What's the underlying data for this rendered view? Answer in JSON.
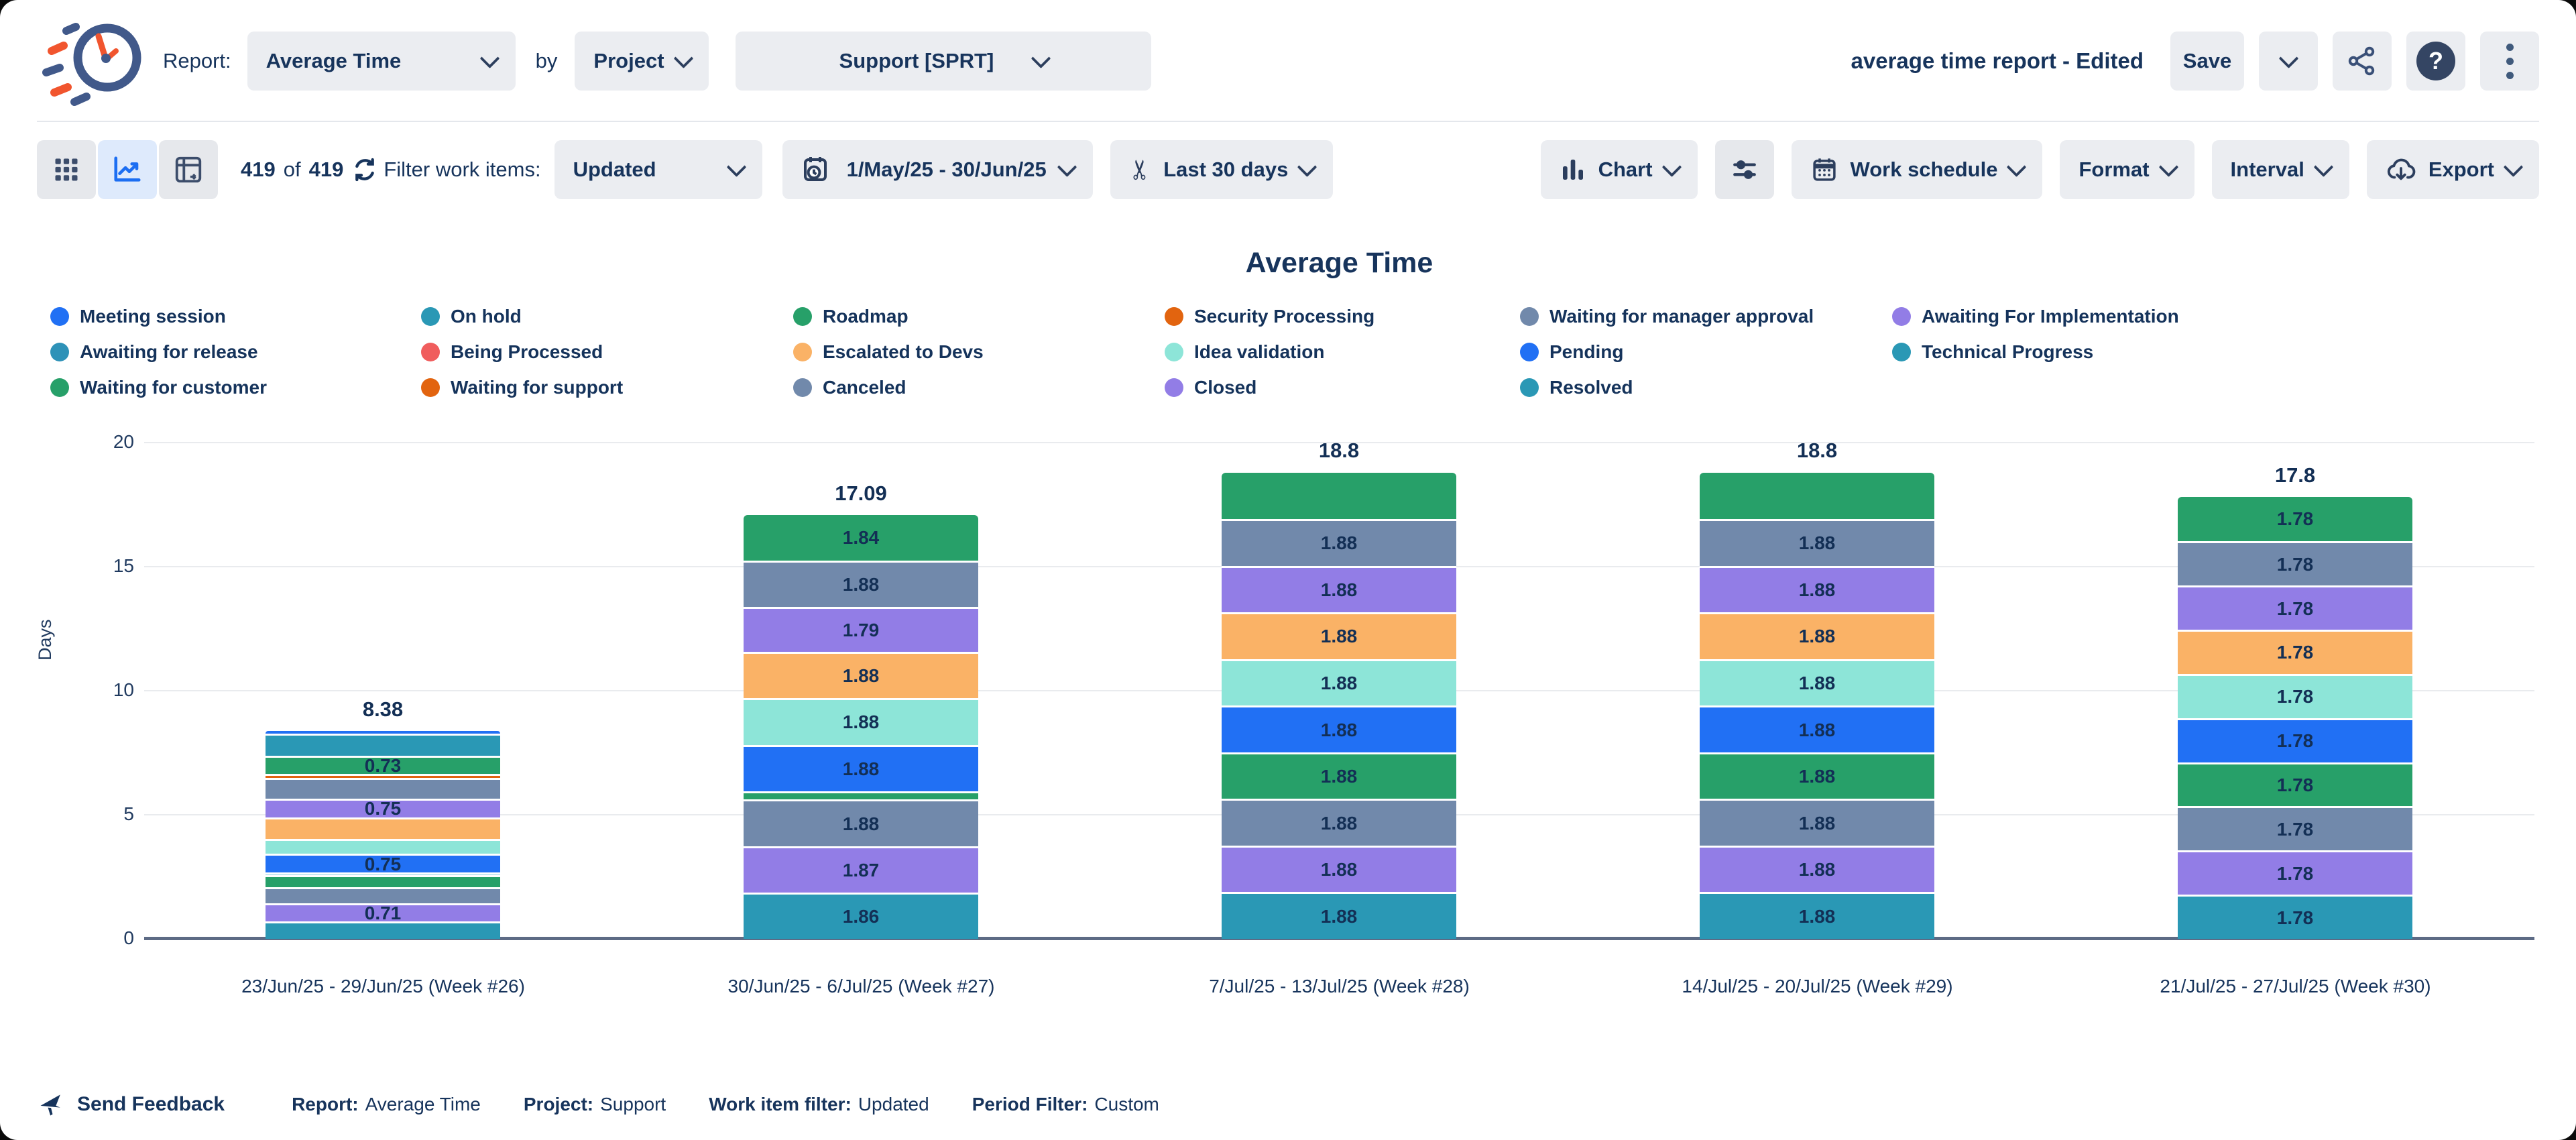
{
  "header": {
    "report_label": "Report:",
    "report_value": "Average Time",
    "by_label": "by",
    "group_value": "Project",
    "project_value": "Support [SPRT]",
    "doc_title": "average time report - Edited",
    "save_label": "Save"
  },
  "toolbar": {
    "count_current": "419",
    "count_of": "of",
    "count_total": "419",
    "filter_label": "Filter work items:",
    "filter_value": "Updated",
    "date_range": "1/May/25 - 30/Jun/25",
    "trim_value": "Last 30 days",
    "chart_label": "Chart",
    "work_schedule_label": "Work schedule",
    "format_label": "Format",
    "interval_label": "Interval",
    "export_label": "Export"
  },
  "icons": {
    "scissors_glyph": "✂"
  },
  "legend": {
    "items": [
      {
        "label": "Meeting session",
        "color": "#2170F4"
      },
      {
        "label": "On hold",
        "color": "#2A98B5"
      },
      {
        "label": "Roadmap",
        "color": "#27A069"
      },
      {
        "label": "Security Processing",
        "color": "#E2640F"
      },
      {
        "label": "Waiting for manager approval",
        "color": "#7189AB"
      },
      {
        "label": "Awaiting For Implementation",
        "color": "#927DE6"
      },
      {
        "label": "Awaiting for release",
        "color": "#2E92B8"
      },
      {
        "label": "Being Processed",
        "color": "#F05D5D"
      },
      {
        "label": "Escalated to Devs",
        "color": "#FAB266"
      },
      {
        "label": "Idea validation",
        "color": "#8DE5D8"
      },
      {
        "label": "Pending",
        "color": "#2170F4"
      },
      {
        "label": "Technical Progress",
        "color": "#2A98B5"
      },
      {
        "label": "Waiting for customer",
        "color": "#27A069"
      },
      {
        "label": "Waiting for support",
        "color": "#E2640F"
      },
      {
        "label": "Canceled",
        "color": "#7189AB"
      },
      {
        "label": "Closed",
        "color": "#927DE6"
      },
      {
        "label": "Resolved",
        "color": "#2A98B5"
      }
    ]
  },
  "chart_data": {
    "type": "bar",
    "stacked": true,
    "title": "Average Time",
    "ylabel": "Days",
    "ylim": [
      0,
      20
    ],
    "yticks": [
      0,
      5,
      10,
      15,
      20
    ],
    "grid": true,
    "legend_position": "top",
    "categories": [
      "23/Jun/25 - 29/Jun/25 (Week #26)",
      "30/Jun/25 - 6/Jul/25 (Week #27)",
      "7/Jul/25 - 13/Jul/25 (Week #28)",
      "14/Jul/25 - 20/Jul/25 (Week #29)",
      "21/Jul/25 - 27/Jul/25 (Week #30)"
    ],
    "totals": [
      "8.38",
      "17.09",
      "18.8",
      "18.8",
      "17.8"
    ],
    "bars": [
      {
        "total": "8.38",
        "segments": [
          {
            "name": "meeting-session",
            "color": "#2170F4",
            "value": 0.1,
            "label": ""
          },
          {
            "name": "on-hold",
            "color": "#2A98B5",
            "value": 0.9,
            "label": ""
          },
          {
            "name": "waiting-for-customer",
            "color": "#27A069",
            "value": 0.73,
            "label": "0.73"
          },
          {
            "name": "waiting-for-support",
            "color": "#E2640F",
            "value": 0.15,
            "label": ""
          },
          {
            "name": "waiting-for-manager-approval",
            "color": "#7189AB",
            "value": 0.85,
            "label": ""
          },
          {
            "name": "awaiting-for-implementation",
            "color": "#927DE6",
            "value": 0.75,
            "label": "0.75"
          },
          {
            "name": "escalated-to-devs",
            "color": "#FAB266",
            "value": 0.88,
            "label": ""
          },
          {
            "name": "idea-validation",
            "color": "#8DE5D8",
            "value": 0.6,
            "label": ""
          },
          {
            "name": "pending",
            "color": "#2170F4",
            "value": 0.75,
            "label": "0.75"
          },
          {
            "name": "awaiting-for-release",
            "color": "#9FD8E8",
            "value": 0.1,
            "label": ""
          },
          {
            "name": "roadmap",
            "color": "#27A069",
            "value": 0.5,
            "label": ""
          },
          {
            "name": "canceled",
            "color": "#7189AB",
            "value": 0.65,
            "label": ""
          },
          {
            "name": "closed",
            "color": "#927DE6",
            "value": 0.71,
            "label": "0.71"
          },
          {
            "name": "resolved",
            "color": "#2A98B5",
            "value": 0.71,
            "label": ""
          }
        ]
      },
      {
        "total": "17.09",
        "segments": [
          {
            "name": "waiting-for-customer",
            "color": "#27A069",
            "value": 1.84,
            "label": "1.84"
          },
          {
            "name": "waiting-for-manager-approval",
            "color": "#7189AB",
            "value": 1.88,
            "label": "1.88"
          },
          {
            "name": "awaiting-for-implementation",
            "color": "#927DE6",
            "value": 1.79,
            "label": "1.79"
          },
          {
            "name": "escalated-to-devs",
            "color": "#FAB266",
            "value": 1.88,
            "label": "1.88"
          },
          {
            "name": "idea-validation",
            "color": "#8DE5D8",
            "value": 1.88,
            "label": "1.88"
          },
          {
            "name": "pending",
            "color": "#2170F4",
            "value": 1.88,
            "label": "1.88"
          },
          {
            "name": "roadmap",
            "color": "#27A069",
            "value": 0.33,
            "label": ""
          },
          {
            "name": "canceled",
            "color": "#7189AB",
            "value": 1.88,
            "label": "1.88"
          },
          {
            "name": "closed",
            "color": "#927DE6",
            "value": 1.87,
            "label": "1.87"
          },
          {
            "name": "resolved",
            "color": "#2A98B5",
            "value": 1.86,
            "label": "1.86"
          }
        ]
      },
      {
        "total": "18.8",
        "segments": [
          {
            "name": "waiting-for-customer",
            "color": "#27A069",
            "value": 1.88,
            "label": ""
          },
          {
            "name": "waiting-for-manager-approval",
            "color": "#7189AB",
            "value": 1.88,
            "label": "1.88"
          },
          {
            "name": "awaiting-for-implementation",
            "color": "#927DE6",
            "value": 1.88,
            "label": "1.88"
          },
          {
            "name": "escalated-to-devs",
            "color": "#FAB266",
            "value": 1.88,
            "label": "1.88"
          },
          {
            "name": "idea-validation",
            "color": "#8DE5D8",
            "value": 1.88,
            "label": "1.88"
          },
          {
            "name": "pending",
            "color": "#2170F4",
            "value": 1.88,
            "label": "1.88"
          },
          {
            "name": "roadmap",
            "color": "#27A069",
            "value": 1.88,
            "label": "1.88"
          },
          {
            "name": "canceled",
            "color": "#7189AB",
            "value": 1.88,
            "label": "1.88"
          },
          {
            "name": "closed",
            "color": "#927DE6",
            "value": 1.88,
            "label": "1.88"
          },
          {
            "name": "resolved",
            "color": "#2A98B5",
            "value": 1.88,
            "label": "1.88"
          }
        ]
      },
      {
        "total": "18.8",
        "segments": [
          {
            "name": "waiting-for-customer",
            "color": "#27A069",
            "value": 1.88,
            "label": ""
          },
          {
            "name": "waiting-for-manager-approval",
            "color": "#7189AB",
            "value": 1.88,
            "label": "1.88"
          },
          {
            "name": "awaiting-for-implementation",
            "color": "#927DE6",
            "value": 1.88,
            "label": "1.88"
          },
          {
            "name": "escalated-to-devs",
            "color": "#FAB266",
            "value": 1.88,
            "label": "1.88"
          },
          {
            "name": "idea-validation",
            "color": "#8DE5D8",
            "value": 1.88,
            "label": "1.88"
          },
          {
            "name": "pending",
            "color": "#2170F4",
            "value": 1.88,
            "label": "1.88"
          },
          {
            "name": "roadmap",
            "color": "#27A069",
            "value": 1.88,
            "label": "1.88"
          },
          {
            "name": "canceled",
            "color": "#7189AB",
            "value": 1.88,
            "label": "1.88"
          },
          {
            "name": "closed",
            "color": "#927DE6",
            "value": 1.88,
            "label": "1.88"
          },
          {
            "name": "resolved",
            "color": "#2A98B5",
            "value": 1.88,
            "label": "1.88"
          }
        ]
      },
      {
        "total": "17.8",
        "segments": [
          {
            "name": "waiting-for-customer",
            "color": "#27A069",
            "value": 1.78,
            "label": "1.78"
          },
          {
            "name": "waiting-for-manager-approval",
            "color": "#7189AB",
            "value": 1.78,
            "label": "1.78"
          },
          {
            "name": "awaiting-for-implementation",
            "color": "#927DE6",
            "value": 1.78,
            "label": "1.78"
          },
          {
            "name": "escalated-to-devs",
            "color": "#FAB266",
            "value": 1.78,
            "label": "1.78"
          },
          {
            "name": "idea-validation",
            "color": "#8DE5D8",
            "value": 1.78,
            "label": "1.78"
          },
          {
            "name": "pending",
            "color": "#2170F4",
            "value": 1.78,
            "label": "1.78"
          },
          {
            "name": "roadmap",
            "color": "#27A069",
            "value": 1.78,
            "label": "1.78"
          },
          {
            "name": "canceled",
            "color": "#7189AB",
            "value": 1.78,
            "label": "1.78"
          },
          {
            "name": "closed",
            "color": "#927DE6",
            "value": 1.78,
            "label": "1.78"
          },
          {
            "name": "resolved",
            "color": "#2A98B5",
            "value": 1.78,
            "label": "1.78"
          }
        ]
      }
    ]
  },
  "footer": {
    "feedback_label": "Send Feedback",
    "stats": [
      {
        "label": "Report:",
        "value": "Average Time"
      },
      {
        "label": "Project:",
        "value": "Support"
      },
      {
        "label": "Work item filter:",
        "value": "Updated"
      },
      {
        "label": "Period Filter:",
        "value": "Custom"
      }
    ]
  }
}
